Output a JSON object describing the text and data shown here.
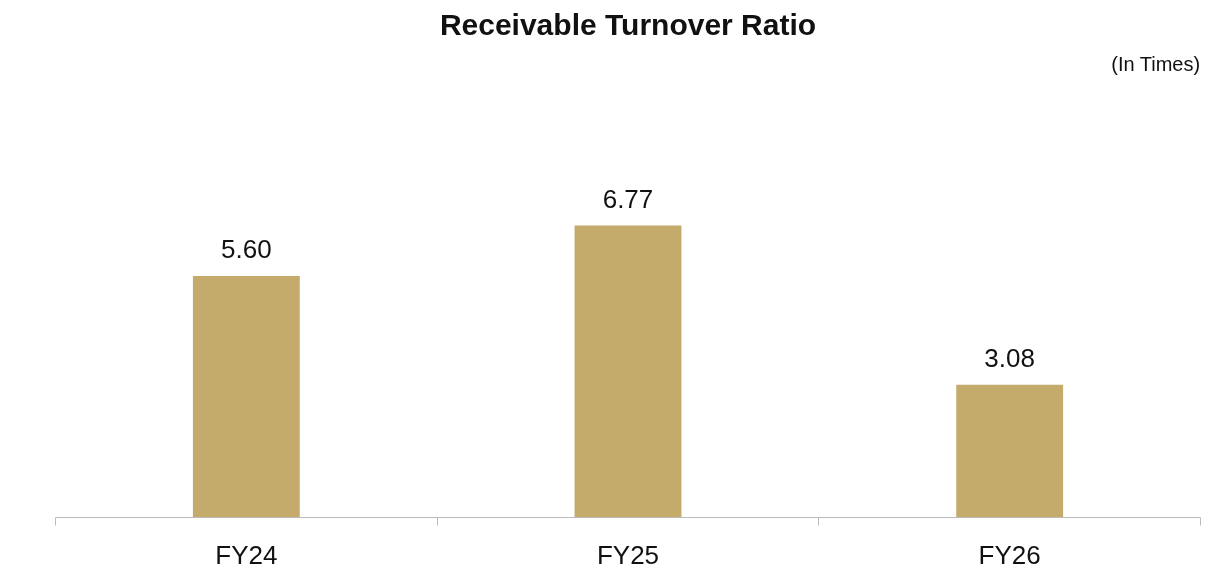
{
  "chart_data": {
    "type": "bar",
    "title": "Receivable Turnover Ratio",
    "categories": [
      "FY24",
      "FY25",
      "FY26"
    ],
    "values": [
      5.6,
      6.77,
      3.08
    ],
    "value_labels": [
      "5.60",
      "6.77",
      "3.08"
    ],
    "color": "#c4aa6b",
    "annotations": [
      "(In Times)"
    ],
    "grid": false,
    "tick_labels": "x"
  }
}
